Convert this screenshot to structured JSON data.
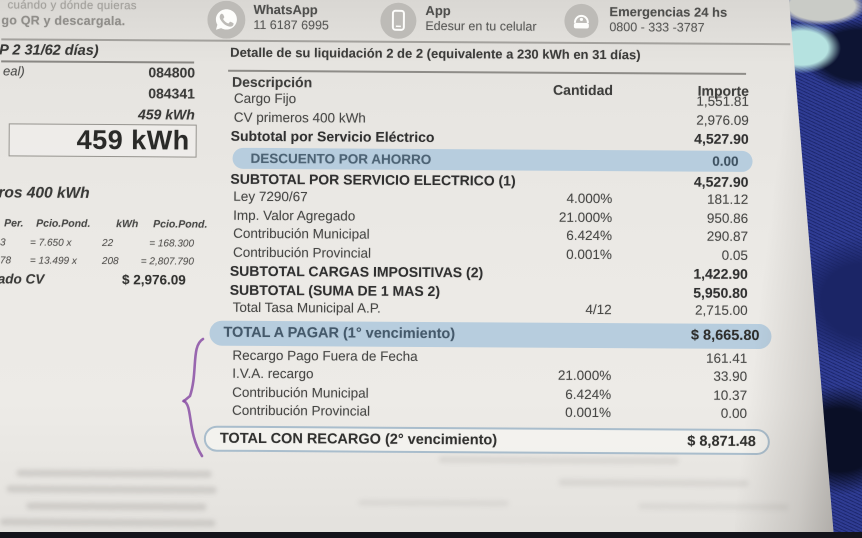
{
  "header": {
    "tagline_line1": "cuándo y dónde quieras",
    "tagline_line2": "go QR y descargala.",
    "contacts": [
      {
        "icon": "whatsapp-icon",
        "title": "WhatsApp",
        "subtitle": "11 6187 6995"
      },
      {
        "icon": "smartphone-icon",
        "title": "App",
        "subtitle": "Edesur en tu celular"
      },
      {
        "icon": "phone-icon",
        "title": "Emergencias 24 hs",
        "subtitle": "0800 - 333 -3787"
      }
    ]
  },
  "left_panel": {
    "period_heading": "P 2 31/62 días)",
    "partial_label": "eal)",
    "meter_value_1": "084800",
    "meter_value_2": "084341",
    "consumption_small": "459 kWh",
    "consumption_boxed": "459 kWh",
    "section_heading": "ros 400 kWh",
    "price_table": {
      "col_headers": [
        "Per.",
        "Pcio.Pond.",
        "kWh",
        "Pcio.Pond."
      ],
      "rows": [
        {
          "per": "3",
          "price": "= 7.650 x",
          "kwh": "22",
          "pond": "= 168.300"
        },
        {
          "per": "78",
          "price": "= 13.499 x",
          "kwh": "208",
          "pond": "= 2,807.790"
        }
      ],
      "total_label": "ado CV",
      "total_value": "$ 2,976.09"
    }
  },
  "invoice": {
    "title": "Detalle de su liquidación 2 de 2 (equivalente a 230 kWh en 31 días)",
    "col_desc": "Descripción",
    "col_qty": "Cantidad",
    "col_amount": "Importe",
    "rows": [
      {
        "desc": "Cargo Fijo",
        "qty": "",
        "amount": "1,551.81",
        "style": "normal"
      },
      {
        "desc": "CV primeros 400 kWh",
        "qty": "",
        "amount": "2,976.09",
        "style": "normal"
      },
      {
        "desc": "Subtotal por Servicio Eléctrico",
        "qty": "",
        "amount": "4,527.90",
        "style": "bold"
      },
      {
        "desc": "DESCUENTO POR AHORRO",
        "qty": "",
        "amount": "0.00",
        "style": "pill-blue"
      },
      {
        "desc": "SUBTOTAL POR SERVICIO ELECTRICO (1)",
        "qty": "",
        "amount": "4,527.90",
        "style": "bold"
      },
      {
        "desc": "Ley 7290/67",
        "qty": "4.000%",
        "amount": "181.12",
        "style": "normal"
      },
      {
        "desc": "Imp. Valor Agregado",
        "qty": "21.000%",
        "amount": "950.86",
        "style": "normal"
      },
      {
        "desc": "Contribución Municipal",
        "qty": "6.424%",
        "amount": "290.87",
        "style": "normal"
      },
      {
        "desc": "Contribución Provincial",
        "qty": "0.001%",
        "amount": "0.05",
        "style": "normal"
      },
      {
        "desc": "SUBTOTAL CARGAS IMPOSITIVAS (2)",
        "qty": "",
        "amount": "1,422.90",
        "style": "bold"
      },
      {
        "desc": "SUBTOTAL (SUMA DE 1 MAS 2)",
        "qty": "",
        "amount": "5,950.80",
        "style": "bold"
      },
      {
        "desc": "Total Tasa Municipal A.P.",
        "qty": "4/12",
        "amount": "2,715.00",
        "style": "normal"
      },
      {
        "desc": "TOTAL A PAGAR (1° vencimiento)",
        "qty": "",
        "amount": "$ 8,665.80",
        "style": "pill-blue-total"
      },
      {
        "desc": "Recargo Pago Fuera de Fecha",
        "qty": "",
        "amount": "161.41",
        "style": "normal"
      },
      {
        "desc": "I.V.A. recargo",
        "qty": "21.000%",
        "amount": "33.90",
        "style": "normal"
      },
      {
        "desc": "Contribución Municipal",
        "qty": "6.424%",
        "amount": "10.37",
        "style": "normal"
      },
      {
        "desc": "Contribución Provincial",
        "qty": "0.001%",
        "amount": "0.00",
        "style": "normal"
      },
      {
        "desc": "TOTAL CON RECARGO (2° vencimiento)",
        "qty": "",
        "amount": "$ 8,871.48",
        "style": "pill-outline"
      }
    ]
  },
  "colors": {
    "pill_blue": "#b7cdde",
    "pill_text": "#4c6375",
    "pen_purple": "#8a4fa5",
    "fabric_navy": "#27348f"
  }
}
